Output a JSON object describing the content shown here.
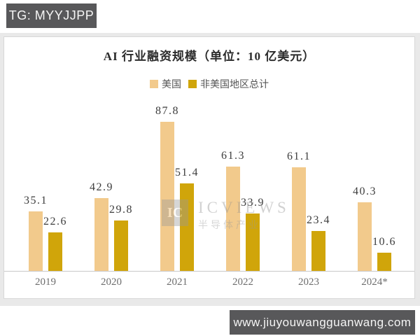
{
  "header": {
    "tg_badge": "TG: MYYJJPP"
  },
  "footer": {
    "url_badge": "www.jiuyouwangguanwang.com"
  },
  "watermark": {
    "logo": "IC",
    "name": "ICVIEWS",
    "subtitle": "半导体产业"
  },
  "chart_data": {
    "type": "bar",
    "title": "AI 行业融资规模（单位：10 亿美元）",
    "categories": [
      "2019",
      "2020",
      "2021",
      "2022",
      "2023",
      "2024*"
    ],
    "series": [
      {
        "name": "美国",
        "color": "#F2CA8C",
        "values": [
          35.1,
          42.9,
          87.8,
          61.3,
          61.1,
          40.3
        ]
      },
      {
        "name": "非美国地区总计",
        "color": "#D0A50A",
        "values": [
          22.6,
          29.8,
          51.4,
          33.9,
          23.4,
          10.6
        ]
      }
    ],
    "ylim": [
      0,
      95
    ],
    "grid": false,
    "legend_position": "top",
    "value_labels": true,
    "axis_line_color": "#c9c9c9"
  }
}
